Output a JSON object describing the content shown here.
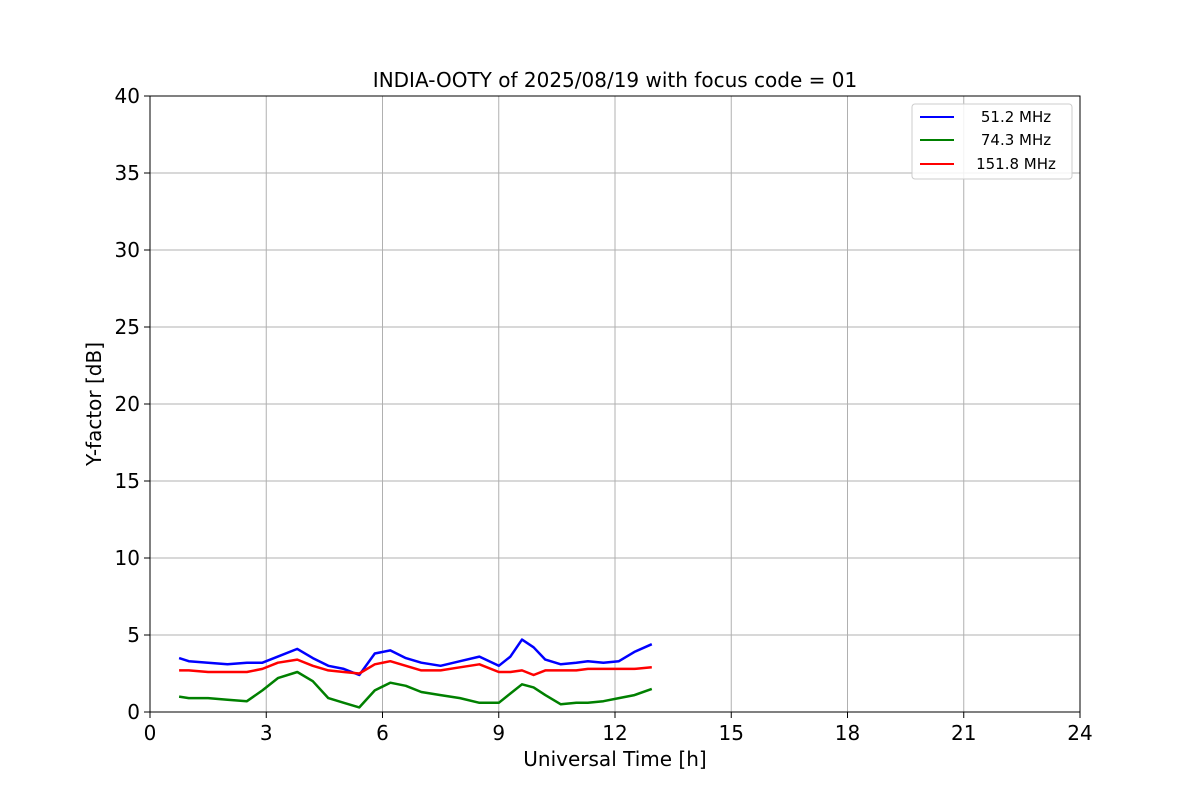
{
  "chart_data": {
    "type": "line",
    "title": "INDIA-OOTY of 2025/08/19 with focus code = 01",
    "xlabel": "Universal Time [h]",
    "ylabel": "Y-factor [dB]",
    "xlim": [
      0,
      24
    ],
    "ylim": [
      0,
      40
    ],
    "xticks": [
      0,
      3,
      6,
      9,
      12,
      15,
      18,
      21,
      24
    ],
    "xtick_labels": [
      "0",
      "3",
      "6",
      "9",
      "12",
      "15",
      "18",
      "21",
      "24"
    ],
    "yticks": [
      0,
      5,
      10,
      15,
      20,
      25,
      30,
      35,
      40
    ],
    "ytick_labels": [
      "0",
      "5",
      "10",
      "15",
      "20",
      "25",
      "30",
      "35",
      "40"
    ],
    "grid": true,
    "legend_position": "top-right",
    "series": [
      {
        "name": "51.2 MHz",
        "color": "#0000ff",
        "x": [
          0.75,
          1.0,
          1.5,
          2.0,
          2.5,
          2.9,
          3.3,
          3.8,
          4.2,
          4.6,
          5.0,
          5.4,
          5.8,
          6.2,
          6.6,
          7.0,
          7.5,
          8.0,
          8.5,
          9.0,
          9.3,
          9.6,
          9.9,
          10.2,
          10.6,
          11.0,
          11.3,
          11.7,
          12.1,
          12.5,
          12.95
        ],
        "values": [
          3.5,
          3.3,
          3.2,
          3.1,
          3.2,
          3.2,
          3.6,
          4.1,
          3.5,
          3.0,
          2.8,
          2.4,
          3.8,
          4.0,
          3.5,
          3.2,
          3.0,
          3.3,
          3.6,
          3.0,
          3.6,
          4.7,
          4.2,
          3.4,
          3.1,
          3.2,
          3.3,
          3.2,
          3.3,
          3.9,
          4.4
        ]
      },
      {
        "name": "74.3 MHz",
        "color": "#008000",
        "x": [
          0.75,
          1.0,
          1.5,
          2.0,
          2.5,
          2.9,
          3.3,
          3.8,
          4.2,
          4.6,
          5.0,
          5.4,
          5.8,
          6.2,
          6.6,
          7.0,
          7.5,
          8.0,
          8.5,
          9.0,
          9.3,
          9.6,
          9.9,
          10.2,
          10.6,
          11.0,
          11.3,
          11.7,
          12.1,
          12.5,
          12.95
        ],
        "values": [
          1.0,
          0.9,
          0.9,
          0.8,
          0.7,
          1.4,
          2.2,
          2.6,
          2.0,
          0.9,
          0.6,
          0.3,
          1.4,
          1.9,
          1.7,
          1.3,
          1.1,
          0.9,
          0.6,
          0.6,
          1.2,
          1.8,
          1.6,
          1.1,
          0.5,
          0.6,
          0.6,
          0.7,
          0.9,
          1.1,
          1.5
        ]
      },
      {
        "name": "151.8 MHz",
        "color": "#ff0000",
        "x": [
          0.75,
          1.0,
          1.5,
          2.0,
          2.5,
          2.9,
          3.3,
          3.8,
          4.2,
          4.6,
          5.0,
          5.4,
          5.8,
          6.2,
          6.6,
          7.0,
          7.5,
          8.0,
          8.5,
          9.0,
          9.3,
          9.6,
          9.9,
          10.2,
          10.6,
          11.0,
          11.3,
          11.7,
          12.1,
          12.5,
          12.95
        ],
        "values": [
          2.7,
          2.7,
          2.6,
          2.6,
          2.6,
          2.8,
          3.2,
          3.4,
          3.0,
          2.7,
          2.6,
          2.5,
          3.1,
          3.3,
          3.0,
          2.7,
          2.7,
          2.9,
          3.1,
          2.6,
          2.6,
          2.7,
          2.4,
          2.7,
          2.7,
          2.7,
          2.8,
          2.8,
          2.8,
          2.8,
          2.9
        ]
      }
    ]
  }
}
